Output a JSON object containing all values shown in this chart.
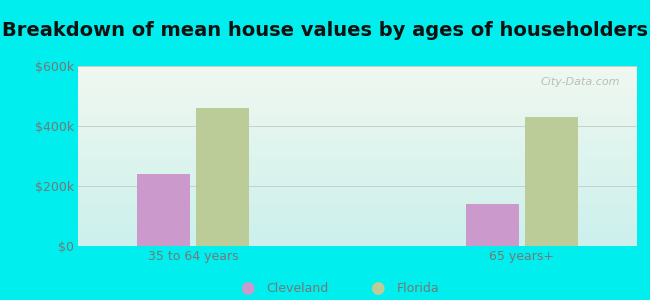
{
  "title": "Breakdown of mean house values by ages of householders",
  "categories": [
    "35 to 64 years",
    "65 years+"
  ],
  "cleveland_values": [
    240000,
    140000
  ],
  "florida_values": [
    460000,
    430000
  ],
  "cleveland_color": "#cc99cc",
  "florida_color": "#bbcc99",
  "ylim": [
    0,
    600000
  ],
  "yticks": [
    0,
    200000,
    400000,
    600000
  ],
  "ytick_labels": [
    "$0",
    "$200k",
    "$400k",
    "$600k"
  ],
  "background_color": "#00eeee",
  "plot_bg_top": "#f0f8f0",
  "plot_bg_bottom": "#ccf0ec",
  "bar_width": 0.32,
  "legend_labels": [
    "Cleveland",
    "Florida"
  ],
  "watermark": "City-Data.com",
  "title_fontsize": 14,
  "tick_fontsize": 9,
  "title_color": "#111111",
  "tick_color": "#777777"
}
